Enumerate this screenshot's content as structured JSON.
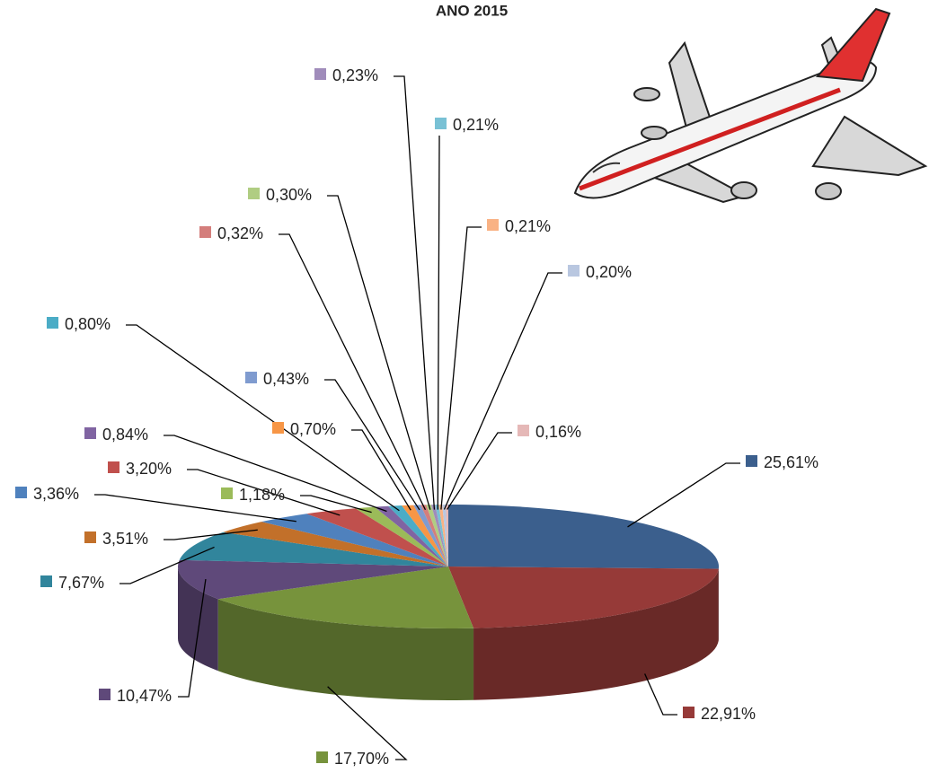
{
  "chart_data": {
    "type": "pie",
    "title": "ANO 2015",
    "values": [
      25.61,
      22.91,
      17.7,
      10.47,
      7.67,
      3.51,
      3.36,
      3.2,
      1.18,
      0.84,
      0.8,
      0.7,
      0.43,
      0.32,
      0.3,
      0.23,
      0.21,
      0.21,
      0.2,
      0.16
    ],
    "value_labels": [
      "25,61%",
      "22,91%",
      "17,70%",
      "10,47%",
      "7,67%",
      "3,51%",
      "3,36%",
      "3,20%",
      "1,18%",
      "0,84%",
      "0,80%",
      "0,70%",
      "0,43%",
      "0,32%",
      "0,30%",
      "0,23%",
      "0,21%",
      "0,21%",
      "0,20%",
      "0,16%"
    ],
    "colors": [
      "#3b5f8d",
      "#963a38",
      "#77933c",
      "#5f497a",
      "#31859c",
      "#c2702a",
      "#4f81bd",
      "#c0504d",
      "#9bbb59",
      "#8064a2",
      "#4bacc6",
      "#f79646",
      "#7f9bcf",
      "#d47e7c",
      "#b0cd82",
      "#a08cbb",
      "#79c1d5",
      "#f9b284",
      "#b9c7e0",
      "#e5b8b7"
    ]
  }
}
